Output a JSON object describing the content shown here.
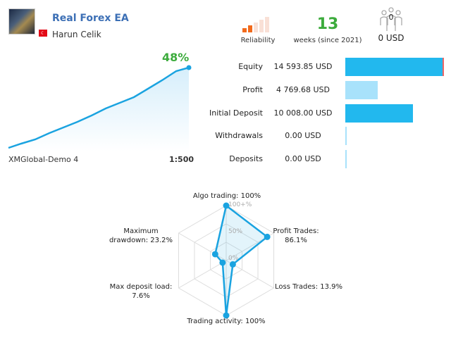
{
  "header": {
    "title": "Real Forex EA",
    "author": "Harun Celik",
    "country_flag": "turkey-flag"
  },
  "stats": {
    "reliability_label": "Reliability",
    "reliability_level": 2,
    "reliability_max": 5,
    "weeks_value": "13",
    "weeks_label": "weeks (since 2021)",
    "subscribers_count": "0",
    "subscribers_price": "0 USD"
  },
  "growth": {
    "percent": "48%",
    "server": "XMGlobal-Demo 4",
    "leverage": "1:500"
  },
  "balance_rows": [
    {
      "label": "Equity",
      "value": "14 593.85 USD",
      "amount": 14593.85,
      "color": "#22b8ee"
    },
    {
      "label": "Profit",
      "value": "4 769.68 USD",
      "amount": 4769.68,
      "color": "#a8e2fb"
    },
    {
      "label": "Initial Deposit",
      "value": "10 008.00 USD",
      "amount": 10008.0,
      "color": "#22b8ee"
    },
    {
      "label": "Withdrawals",
      "value": "0.00 USD",
      "amount": 0,
      "color": "#a8e2fb"
    },
    {
      "label": "Deposits",
      "value": "0.00 USD",
      "amount": 0,
      "color": "#a8e2fb"
    }
  ],
  "radar": {
    "ring_labels": [
      "100+%",
      "50%",
      "0%"
    ],
    "axes": [
      {
        "label": "Algo trading: 100%",
        "value": 100
      },
      {
        "label": "Profit Trades: 86.1%",
        "value": 86.1
      },
      {
        "label": "Loss Trades: 13.9%",
        "value": 13.9
      },
      {
        "label": "Trading activity: 100%",
        "value": 100
      },
      {
        "label": "Max deposit load: 7.6%",
        "value": 7.6
      },
      {
        "label": "Maximum drawdown: 23.2%",
        "value": 23.2
      }
    ],
    "color": "#1aa3e0"
  }
}
